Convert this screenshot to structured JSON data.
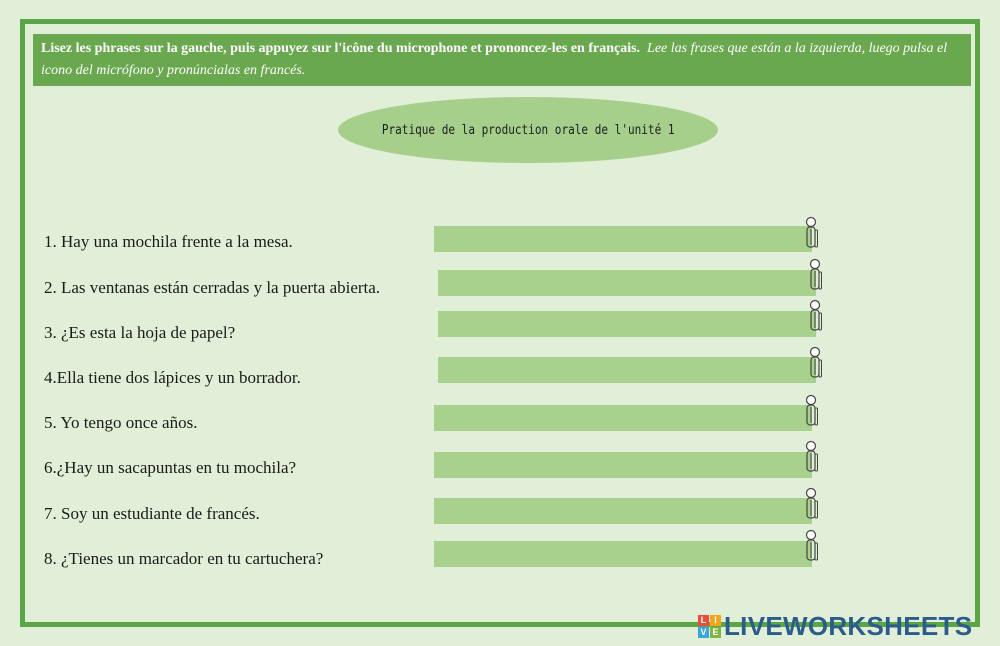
{
  "instructions": {
    "french": "Lisez les phrases sur la gauche, puis appuyez sur l'icône du microphone et prononcez-les en français.",
    "spanish": "Lee las frases que están a la izquierda, luego pulsa el icono del micrófono y pronúncialas en francés."
  },
  "title": "Pratique de la production orale de l'unité 1",
  "sentences": [
    "1. Hay una mochila frente a la mesa.",
    "2. Las ventanas están cerradas y la puerta abierta.",
    "3. ¿Es esta la hoja de papel?",
    "4.Ella tiene dos lápices y un borrador.",
    "5. Yo tengo once años.",
    "6.¿Hay un sacapuntas en tu mochila?",
    "7. Soy un estudiante de francés.",
    "8. ¿Tienes un marcador en tu cartuchera?"
  ],
  "icons": {
    "microphone": "microphone-icon"
  },
  "brand": {
    "name": "LIVEWORKSHEETS",
    "logo_letters": [
      "L",
      "I",
      "V",
      "E"
    ]
  },
  "colors": {
    "accent": "#6aa84f",
    "bar": "#a9d18e",
    "background": "#e2efd8",
    "brand": "#2c5c8c"
  }
}
